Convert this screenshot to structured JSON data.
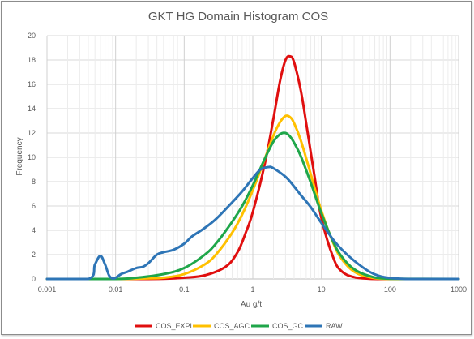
{
  "chart_data": {
    "type": "line",
    "title": "GKT HG Domain Histogram COS",
    "xlabel": "Au g/t",
    "ylabel": "Frequency",
    "xscale": "log",
    "xlim": [
      0.001,
      1000
    ],
    "ylim": [
      0,
      20
    ],
    "x_ticks": [
      "0.001",
      "0.01",
      "0.1",
      "1",
      "10",
      "100",
      "1000"
    ],
    "y_ticks": [
      "0",
      "2",
      "4",
      "6",
      "8",
      "10",
      "12",
      "14",
      "16",
      "18",
      "20"
    ],
    "grid": true,
    "legend_position": "bottom",
    "series": [
      {
        "name": "COS_EXPL",
        "color": "#e00f0f",
        "points": [
          [
            0.001,
            0
          ],
          [
            0.01,
            0
          ],
          [
            0.05,
            0.02
          ],
          [
            0.1,
            0.1
          ],
          [
            0.2,
            0.3
          ],
          [
            0.4,
            1.0
          ],
          [
            0.6,
            2.2
          ],
          [
            0.8,
            3.9
          ],
          [
            1,
            5.5
          ],
          [
            1.5,
            9.5
          ],
          [
            2,
            13.2
          ],
          [
            2.5,
            16.3
          ],
          [
            3,
            18.0
          ],
          [
            3.5,
            18.3
          ],
          [
            4,
            17.8
          ],
          [
            5,
            15.5
          ],
          [
            6,
            12.8
          ],
          [
            8,
            8.3
          ],
          [
            10,
            5.0
          ],
          [
            15,
            1.7
          ],
          [
            20,
            0.6
          ],
          [
            30,
            0.15
          ],
          [
            50,
            0.02
          ],
          [
            100,
            0
          ],
          [
            1000,
            0
          ]
        ]
      },
      {
        "name": "COS_AGC",
        "color": "#ffc000",
        "points": [
          [
            0.001,
            0
          ],
          [
            0.01,
            0
          ],
          [
            0.03,
            0.05
          ],
          [
            0.05,
            0.1
          ],
          [
            0.1,
            0.4
          ],
          [
            0.2,
            1.2
          ],
          [
            0.3,
            2.1
          ],
          [
            0.5,
            3.8
          ],
          [
            0.7,
            5.3
          ],
          [
            1,
            7.3
          ],
          [
            1.5,
            9.9
          ],
          [
            2,
            11.8
          ],
          [
            2.5,
            12.9
          ],
          [
            3,
            13.4
          ],
          [
            3.5,
            13.3
          ],
          [
            4,
            12.8
          ],
          [
            5,
            11.4
          ],
          [
            7,
            8.6
          ],
          [
            10,
            5.6
          ],
          [
            15,
            2.9
          ],
          [
            20,
            1.6
          ],
          [
            30,
            0.6
          ],
          [
            50,
            0.15
          ],
          [
            100,
            0.01
          ],
          [
            1000,
            0
          ]
        ]
      },
      {
        "name": "COS_GC",
        "color": "#1fa64a",
        "points": [
          [
            0.001,
            0
          ],
          [
            0.01,
            0
          ],
          [
            0.02,
            0.1
          ],
          [
            0.05,
            0.4
          ],
          [
            0.1,
            0.9
          ],
          [
            0.2,
            2.0
          ],
          [
            0.3,
            3.0
          ],
          [
            0.5,
            4.7
          ],
          [
            0.7,
            6.0
          ],
          [
            1,
            7.7
          ],
          [
            1.5,
            9.9
          ],
          [
            2,
            11.3
          ],
          [
            2.5,
            11.9
          ],
          [
            3,
            12.0
          ],
          [
            3.5,
            11.7
          ],
          [
            4,
            11.2
          ],
          [
            5,
            10.1
          ],
          [
            7,
            7.9
          ],
          [
            10,
            5.4
          ],
          [
            15,
            3.0
          ],
          [
            20,
            1.8
          ],
          [
            30,
            0.8
          ],
          [
            50,
            0.25
          ],
          [
            100,
            0.02
          ],
          [
            1000,
            0
          ]
        ]
      },
      {
        "name": "RAW",
        "color": "#2e75b6",
        "points": [
          [
            0.001,
            0
          ],
          [
            0.004,
            0
          ],
          [
            0.005,
            1.2
          ],
          [
            0.006,
            1.9
          ],
          [
            0.007,
            1.2
          ],
          [
            0.008,
            0.3
          ],
          [
            0.009,
            0.05
          ],
          [
            0.01,
            0.1
          ],
          [
            0.012,
            0.4
          ],
          [
            0.015,
            0.6
          ],
          [
            0.02,
            0.9
          ],
          [
            0.025,
            1.0
          ],
          [
            0.03,
            1.3
          ],
          [
            0.04,
            2.0
          ],
          [
            0.05,
            2.2
          ],
          [
            0.07,
            2.4
          ],
          [
            0.1,
            2.9
          ],
          [
            0.13,
            3.5
          ],
          [
            0.2,
            4.2
          ],
          [
            0.3,
            5.0
          ],
          [
            0.5,
            6.3
          ],
          [
            0.7,
            7.2
          ],
          [
            1,
            8.3
          ],
          [
            1.3,
            9.0
          ],
          [
            1.7,
            9.2
          ],
          [
            2,
            9.1
          ],
          [
            3,
            8.4
          ],
          [
            4,
            7.6
          ],
          [
            5,
            6.9
          ],
          [
            7,
            5.9
          ],
          [
            10,
            4.6
          ],
          [
            15,
            3.2
          ],
          [
            20,
            2.4
          ],
          [
            30,
            1.5
          ],
          [
            50,
            0.6
          ],
          [
            70,
            0.25
          ],
          [
            100,
            0.08
          ],
          [
            150,
            0.02
          ],
          [
            200,
            0
          ],
          [
            1000,
            0
          ]
        ]
      }
    ]
  }
}
